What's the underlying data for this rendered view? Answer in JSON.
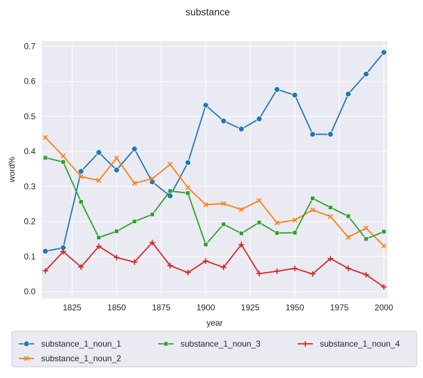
{
  "chart_data": {
    "type": "line",
    "title": "substance",
    "xlabel": "year",
    "ylabel": "word%",
    "xlim": [
      1808,
      2002
    ],
    "ylim": [
      -0.02,
      0.715
    ],
    "x_ticks": [
      "1825",
      "1850",
      "1875",
      "1900",
      "1925",
      "1950",
      "1975",
      "2000"
    ],
    "y_ticks": [
      "0.0",
      "0.1",
      "0.2",
      "0.3",
      "0.4",
      "0.5",
      "0.6",
      "0.7"
    ],
    "grid": true,
    "legend_position": "bottom",
    "x": [
      1810,
      1820,
      1830,
      1840,
      1850,
      1860,
      1870,
      1880,
      1890,
      1900,
      1910,
      1920,
      1930,
      1940,
      1950,
      1960,
      1970,
      1980,
      1990,
      2000
    ],
    "series": [
      {
        "name": "substance_1_noun_1",
        "color": "#1f77b4",
        "marker": "circle",
        "values": [
          0.115,
          0.125,
          0.343,
          0.397,
          0.347,
          0.407,
          0.313,
          0.273,
          0.368,
          0.532,
          0.487,
          0.464,
          0.493,
          0.577,
          0.561,
          0.449,
          0.449,
          0.564,
          0.621,
          0.683
        ]
      },
      {
        "name": "substance_1_noun_2",
        "color": "#ff7f0e",
        "marker": "x",
        "values": [
          0.44,
          0.387,
          0.328,
          0.317,
          0.381,
          0.309,
          0.322,
          0.363,
          0.297,
          0.248,
          0.251,
          0.234,
          0.26,
          0.196,
          0.204,
          0.233,
          0.214,
          0.155,
          0.181,
          0.13
        ]
      },
      {
        "name": "substance_1_noun_3",
        "color": "#2ca02c",
        "marker": "square",
        "values": [
          0.382,
          0.37,
          0.256,
          0.154,
          0.172,
          0.2,
          0.22,
          0.287,
          0.281,
          0.134,
          0.192,
          0.166,
          0.197,
          0.167,
          0.168,
          0.266,
          0.24,
          0.215,
          0.15,
          0.171
        ]
      },
      {
        "name": "substance_1_noun_4",
        "color": "#d62728",
        "marker": "plus",
        "values": [
          0.059,
          0.114,
          0.07,
          0.129,
          0.097,
          0.084,
          0.14,
          0.074,
          0.054,
          0.087,
          0.069,
          0.134,
          0.051,
          0.058,
          0.066,
          0.05,
          0.094,
          0.066,
          0.048,
          0.013
        ]
      }
    ]
  }
}
